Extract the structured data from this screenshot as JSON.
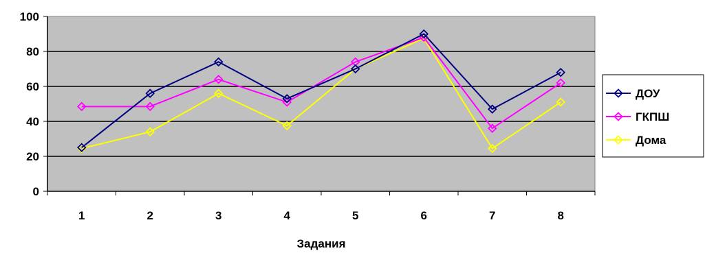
{
  "chart_data": {
    "type": "line",
    "title": "",
    "xlabel": "Задания",
    "ylabel": "",
    "categories": [
      "1",
      "2",
      "3",
      "4",
      "5",
      "6",
      "7",
      "8"
    ],
    "ylim": [
      0,
      100
    ],
    "yticks": [
      0,
      20,
      40,
      60,
      80,
      100
    ],
    "grid": "horizontal",
    "legend_position": "right",
    "plot_background": "#c0c0c0",
    "series": [
      {
        "name": "ДОУ",
        "color": "#000080",
        "values": [
          25,
          56,
          74,
          53,
          70,
          90,
          47,
          68
        ]
      },
      {
        "name": "ГКПШ",
        "color": "#ff00ff",
        "values": [
          48.5,
          48.5,
          64,
          51,
          74,
          88,
          36,
          62
        ]
      },
      {
        "name": "Дома",
        "color": "#ffff00",
        "values": [
          24.5,
          34,
          56,
          37.5,
          70,
          87.5,
          24.5,
          51
        ]
      }
    ]
  }
}
